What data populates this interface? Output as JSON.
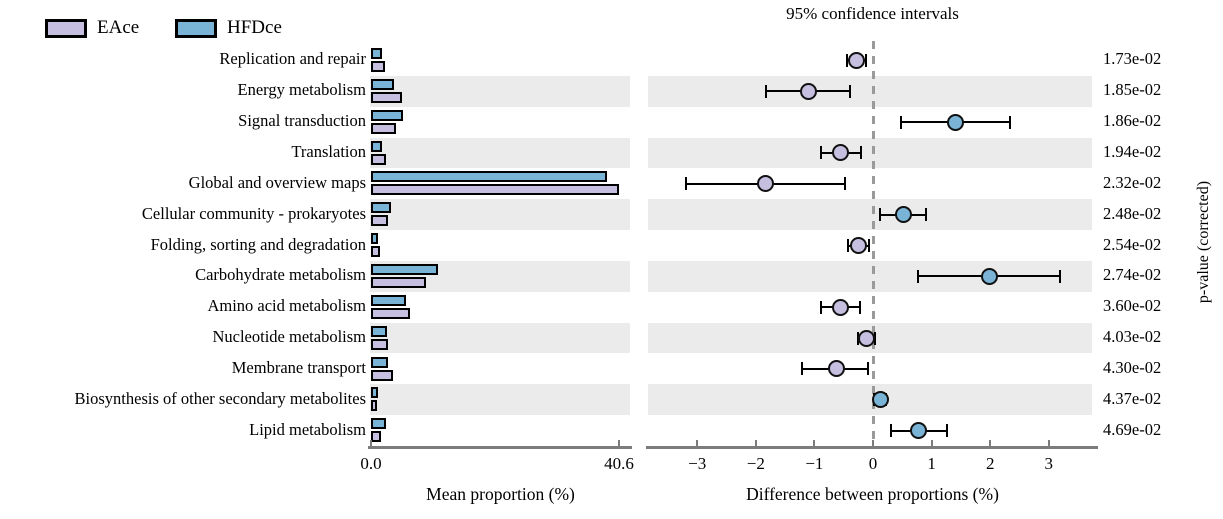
{
  "legend": {
    "items": [
      {
        "label": "EAce",
        "color": "#c6bfe0"
      },
      {
        "label": "HFDce",
        "color": "#79b4d6"
      }
    ]
  },
  "right_panel": {
    "title": "95% confidence intervals",
    "axis_label": "Difference between proportions (%)"
  },
  "left_panel": {
    "axis_label": "Mean proportion (%)"
  },
  "pvalue_axis_label": "p-value (corrected)",
  "colors": {
    "eace": "#c6bfe0",
    "hfdce": "#79b4d6",
    "stripe": "#ebebeb",
    "axis": "#7c7c7c",
    "dashed_zero_line": "#9a9a9a",
    "error_bar": "#000000"
  },
  "chart_data": {
    "type": "extended-error-bar",
    "categories": [
      "Replication and repair",
      "Energy metabolism",
      "Signal transduction",
      "Translation",
      "Global and overview maps",
      "Cellular community - prokaryotes",
      "Folding, sorting and degradation",
      "Carbohydrate metabolism",
      "Amino acid metabolism",
      "Nucleotide metabolism",
      "Membrane transport",
      "Biosynthesis of other secondary metabolites",
      "Lipid metabolism"
    ],
    "series": [
      {
        "name": "HFDce",
        "values": [
          1.8,
          3.8,
          5.3,
          1.8,
          38.6,
          3.3,
          1.2,
          11.0,
          5.7,
          2.6,
          2.8,
          1.2,
          2.5
        ]
      },
      {
        "name": "EAce",
        "values": [
          2.3,
          5.0,
          4.1,
          2.4,
          40.6,
          2.8,
          1.4,
          9.0,
          6.4,
          2.8,
          3.6,
          1.0,
          1.6
        ]
      }
    ],
    "differences": [
      {
        "value": -0.28,
        "ci": [
          -0.45,
          -0.12
        ],
        "enriched": "EAce"
      },
      {
        "value": -1.1,
        "ci": [
          -1.83,
          -0.39
        ],
        "enriched": "EAce"
      },
      {
        "value": 1.4,
        "ci": [
          0.48,
          2.34
        ],
        "enriched": "HFDce"
      },
      {
        "value": -0.55,
        "ci": [
          -0.89,
          -0.2
        ],
        "enriched": "EAce"
      },
      {
        "value": -1.84,
        "ci": [
          -3.19,
          -0.48
        ],
        "enriched": "EAce"
      },
      {
        "value": 0.52,
        "ci": [
          0.12,
          0.9
        ],
        "enriched": "HFDce"
      },
      {
        "value": -0.24,
        "ci": [
          -0.43,
          -0.07
        ],
        "enriched": "EAce"
      },
      {
        "value": 1.99,
        "ci": [
          0.77,
          3.19
        ],
        "enriched": "HFDce"
      },
      {
        "value": -0.55,
        "ci": [
          -0.88,
          -0.22
        ],
        "enriched": "EAce"
      },
      {
        "value": -0.11,
        "ci": [
          -0.25,
          0.03
        ],
        "enriched": "EAce"
      },
      {
        "value": -0.63,
        "ci": [
          -1.22,
          -0.09
        ],
        "enriched": "EAce"
      },
      {
        "value": 0.12,
        "ci": [
          0.02,
          0.22
        ],
        "enriched": "HFDce"
      },
      {
        "value": 0.77,
        "ci": [
          0.31,
          1.26
        ],
        "enriched": "HFDce"
      }
    ],
    "p_values": [
      "1.73e-02",
      "1.85e-02",
      "1.86e-02",
      "1.94e-02",
      "2.32e-02",
      "2.48e-02",
      "2.54e-02",
      "2.74e-02",
      "3.60e-02",
      "4.03e-02",
      "4.30e-02",
      "4.37e-02",
      "4.69e-02"
    ],
    "left_axis": {
      "max": 40.6,
      "ticks": [
        {
          "v": 0,
          "label": "0.0"
        },
        {
          "v": 40.6,
          "label": "40.6"
        }
      ]
    },
    "right_axis": {
      "xlim": [
        -3.85,
        3.85
      ],
      "ticks": [
        {
          "v": -3,
          "label": "−3"
        },
        {
          "v": -2,
          "label": "−2"
        },
        {
          "v": -1,
          "label": "−1"
        },
        {
          "v": 0,
          "label": "0"
        },
        {
          "v": 1,
          "label": "1"
        },
        {
          "v": 2,
          "label": "2"
        },
        {
          "v": 3,
          "label": "3"
        }
      ]
    }
  }
}
